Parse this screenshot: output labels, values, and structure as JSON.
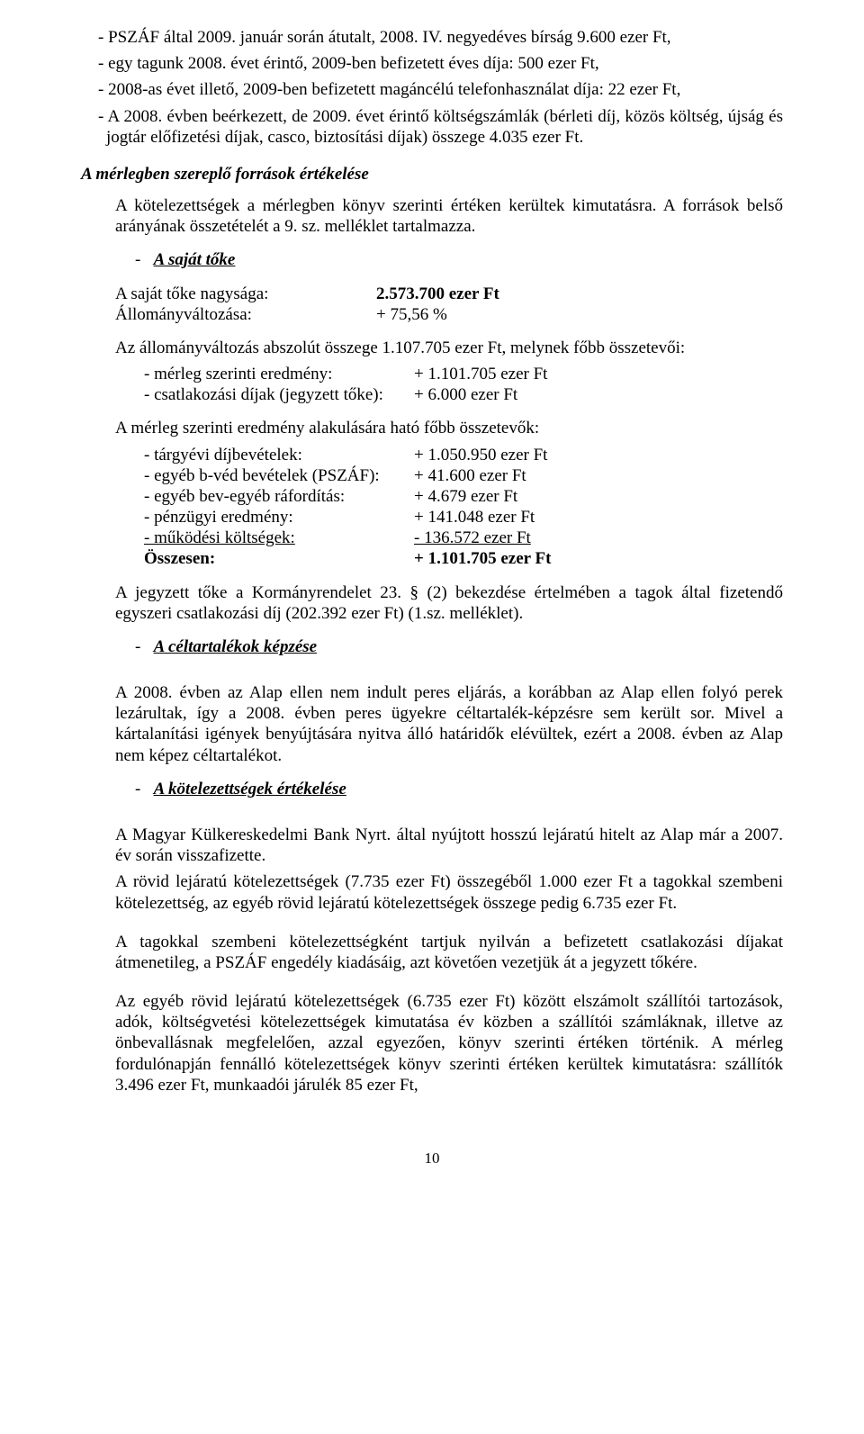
{
  "p1": "- PSZÁF által 2009. január során átutalt, 2008. IV. negyedéves bírság 9.600 ezer Ft,",
  "p2": "- egy tagunk 2008. évet érintő, 2009-ben befizetett éves díja: 500 ezer Ft,",
  "p3": "- 2008-as évet illető, 2009-ben befizetett magáncélú telefonhasználat díja: 22 ezer Ft,",
  "p4": "- A 2008. évben beérkezett, de 2009. évet érintő költségszámlák (bérleti díj, közös költség, újság és jogtár előfizetési díjak, casco, biztosítási díjak) összege 4.035 ezer Ft.",
  "h1": "A mérlegben szereplő források értékelése",
  "p5": "A kötelezettségek a mérlegben könyv szerinti értéken kerültek kimutatásra. A források belső arányának összetételét a 9. sz. melléklet tartalmazza.",
  "li1": "A saját tőke",
  "lab1": "A saját tőke nagysága:",
  "val1": "2.573.700 ezer Ft",
  "lab2": "Állományváltozása:",
  "val2": "+ 75,56 %",
  "p6": "Az állományváltozás abszolút összege 1.107.705 ezer Ft, melynek főbb összetevői:",
  "s1l": "- mérleg szerinti eredmény:",
  "s1v": "+ 1.101.705 ezer Ft",
  "s2l": "- csatlakozási díjak (jegyzett tőke):",
  "s2v": "+ 6.000 ezer Ft",
  "p7": "A mérleg szerinti eredmény alakulására ható főbb összetevők:",
  "t1l": "- tárgyévi díjbevételek:",
  "t1v": "+ 1.050.950 ezer Ft",
  "t2l": "- egyéb b-véd bevételek (PSZÁF):",
  "t2v": "+ 41.600 ezer Ft",
  "t3l": "- egyéb bev-egyéb ráfordítás:",
  "t3v": "+ 4.679 ezer Ft",
  "t4l": "- pénzügyi eredmény:",
  "t4v": "+ 141.048 ezer Ft",
  "t5l": "- működési költségek:",
  "t5v": "- 136.572 ezer Ft",
  "t6l": "Összesen:",
  "t6v": "+ 1.101.705 ezer Ft",
  "p8": "A jegyzett tőke a Kormányrendelet 23. § (2) bekezdése értelmében a tagok által fizetendő egyszeri csatlakozási díj (202.392 ezer Ft) (1.sz. melléklet).",
  "li2": "A céltartalékok képzése",
  "p9": "A 2008. évben az Alap ellen nem indult peres eljárás, a korábban az Alap ellen folyó perek lezárultak, így a 2008. évben peres ügyekre céltartalék-képzésre sem került sor. Mivel a kártalanítási igények benyújtására nyitva álló határidők elévültek, ezért a 2008. évben az Alap nem képez céltartalékot.",
  "li3": "A kötelezettségek értékelése",
  "p10": "A Magyar Külkereskedelmi Bank Nyrt. által nyújtott hosszú lejáratú hitelt az Alap már a 2007. év során visszafizette.",
  "p11": "A rövid lejáratú kötelezettségek (7.735 ezer Ft) összegéből 1.000 ezer Ft a tagokkal szembeni kötelezettség, az egyéb rövid lejáratú kötelezettségek összege pedig 6.735 ezer Ft.",
  "p12": "A tagokkal szembeni kötelezettségként tartjuk nyilván a befizetett csatlakozási díjakat átmenetileg, a PSZÁF engedély kiadásáig, azt követően vezetjük át a jegyzett tőkére.",
  "p13": "Az egyéb rövid lejáratú kötelezettségek (6.735 ezer Ft) között elszámolt szállítói tartozások, adók, költségvetési kötelezettségek kimutatása év közben a szállítói számláknak, illetve az önbevallásnak megfelelően, azzal egyezően, könyv szerinti értéken történik. A mérleg fordulónapján fennálló kötelezettségek könyv szerinti értéken kerültek kimutatásra: szállítók 3.496 ezer Ft, munkaadói járulék 85 ezer Ft,",
  "pageno": "10"
}
